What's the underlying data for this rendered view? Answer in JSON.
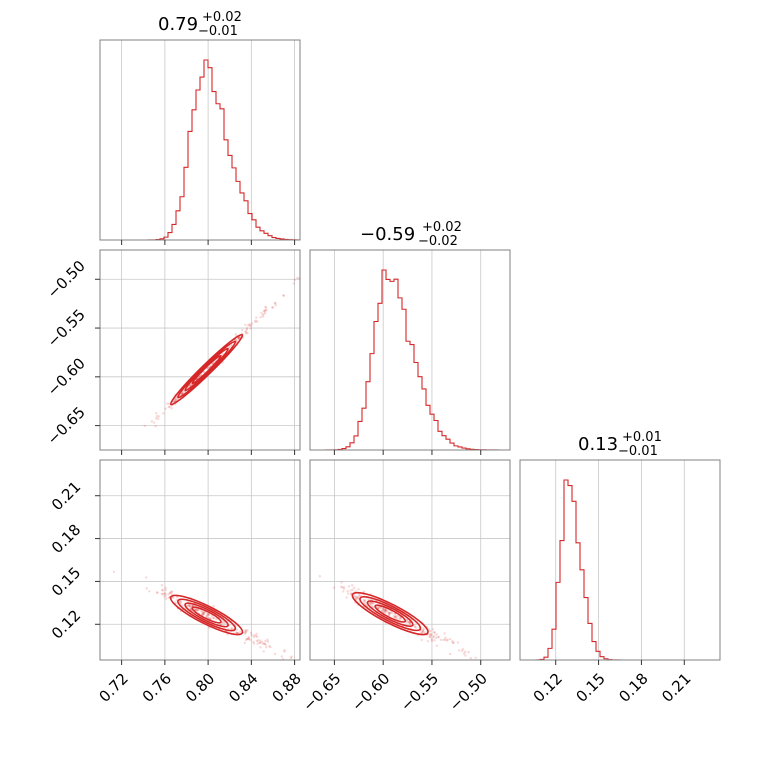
{
  "chart_data": {
    "type": "corner",
    "color": "#d62728",
    "parameters": [
      {
        "title": {
          "median": "0.79",
          "plus": "+0.02",
          "minus": "−0.01"
        },
        "range": [
          0.7,
          0.885
        ],
        "ticks": [
          0.72,
          0.76,
          0.8,
          0.84,
          0.88
        ],
        "tick_labels": [
          "0.72",
          "0.76",
          "0.80",
          "0.84",
          "0.88"
        ],
        "center": 0.795,
        "sigma": 0.012,
        "skew": 0.9
      },
      {
        "title": {
          "median": "−0.59",
          "plus": "+0.02",
          "minus": "−0.02"
        },
        "range": [
          -0.675,
          -0.47
        ],
        "ticks": [
          -0.65,
          -0.6,
          -0.55,
          -0.5
        ],
        "tick_labels": [
          "−0.65",
          "−0.60",
          "−0.55",
          "−0.50"
        ],
        "center": -0.597,
        "sigma": 0.014,
        "skew": 0.9
      },
      {
        "title": {
          "median": "0.13",
          "plus": "+0.01",
          "minus": "−0.01"
        },
        "range": [
          0.095,
          0.235
        ],
        "ticks": [
          0.12,
          0.15,
          0.18,
          0.21
        ],
        "tick_labels": [
          "0.12",
          "0.15",
          "0.18",
          "0.21"
        ],
        "center": 0.129,
        "sigma": 0.0055,
        "skew": 0.5
      }
    ],
    "correlations": [
      {
        "pair": [
          0,
          1
        ],
        "relation": "linear",
        "slope": 1.08,
        "intercept": -1.455
      },
      {
        "pair": [
          0,
          2
        ],
        "relation": "negative",
        "slope": -0.38,
        "intercept": 0.43
      },
      {
        "pair": [
          1,
          2
        ],
        "relation": "negative",
        "slope": -0.35,
        "intercept": -0.08
      }
    ],
    "contour_levels": 4,
    "grid": true
  }
}
